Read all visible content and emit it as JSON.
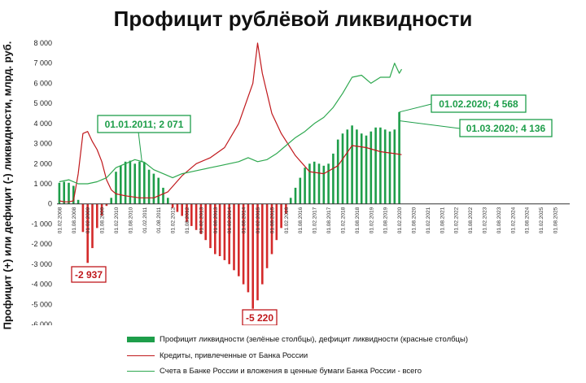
{
  "chart_data": {
    "type": "bar",
    "title": "Профицит рублёвой ликвидности",
    "ylabel": "Профицит (+) или дефицит (-) ликвидности, млрд. руб.",
    "ylim": [
      -6000,
      8000
    ],
    "yticks": [
      "8 000",
      "7 000",
      "6 000",
      "5 000",
      "4 000",
      "3 000",
      "2 000",
      "1 000",
      "0",
      "-1 000",
      "-2 000",
      "-3 000",
      "-4 000",
      "-5 000",
      "-6 000"
    ],
    "ytick_values": [
      8000,
      7000,
      6000,
      5000,
      4000,
      3000,
      2000,
      1000,
      0,
      -1000,
      -2000,
      -3000,
      -4000,
      -5000,
      -6000
    ],
    "grid": false,
    "legend_position": "bottom",
    "x_ticks": [
      "01.02.2008",
      "01.08.2008",
      "01.02.2009",
      "01.08.2009",
      "01.02.2010",
      "01.08.2010",
      "01.02.2011",
      "01.08.2011",
      "01.02.2012",
      "01.08.2012",
      "01.02.2013",
      "01.08.2013",
      "01.02.2014",
      "01.08.2014",
      "01.02.2015",
      "01.08.2015",
      "01.02.2016",
      "01.08.2016",
      "01.02.2017",
      "01.08.2017",
      "01.02.2018",
      "01.08.2018",
      "01.02.2019",
      "01.08.2019",
      "01.02.2020",
      "01.08.2020",
      "01.02.2021",
      "01.08.2021",
      "01.02.2022",
      "01.08.2022",
      "01.02.2023",
      "01.08.2023",
      "01.02.2024",
      "01.08.2024",
      "01.02.2025",
      "01.08.2025"
    ],
    "bar_dates": [
      "01.02.2008",
      "01.04.2008",
      "01.06.2008",
      "01.08.2008",
      "01.10.2008",
      "01.12.2008",
      "01.02.2009",
      "01.04.2009",
      "01.06.2009",
      "01.08.2009",
      "01.10.2009",
      "01.12.2009",
      "01.02.2010",
      "01.04.2010",
      "01.06.2010",
      "01.08.2010",
      "01.10.2010",
      "01.12.2010",
      "01.02.2011",
      "01.04.2011",
      "01.06.2011",
      "01.08.2011",
      "01.10.2011",
      "01.12.2011",
      "01.02.2012",
      "01.04.2012",
      "01.06.2012",
      "01.08.2012",
      "01.10.2012",
      "01.12.2012",
      "01.02.2013",
      "01.04.2013",
      "01.06.2013",
      "01.08.2013",
      "01.10.2013",
      "01.12.2013",
      "01.02.2014",
      "01.04.2014",
      "01.06.2014",
      "01.08.2014",
      "01.10.2014",
      "01.12.2014",
      "01.02.2015",
      "01.04.2015",
      "01.06.2015",
      "01.08.2015",
      "01.10.2015",
      "01.12.2015",
      "01.02.2016",
      "01.04.2016",
      "01.06.2016",
      "01.08.2016",
      "01.10.2016",
      "01.12.2016",
      "01.02.2017",
      "01.04.2017",
      "01.06.2017",
      "01.08.2017",
      "01.10.2017",
      "01.12.2017",
      "01.02.2018",
      "01.04.2018",
      "01.06.2018",
      "01.08.2018",
      "01.10.2018",
      "01.12.2018",
      "01.02.2019",
      "01.04.2019",
      "01.06.2019",
      "01.08.2019",
      "01.10.2019",
      "01.12.2019",
      "01.02.2020"
    ],
    "series": [
      {
        "name": "Профицит ликвидности (зелёные столбцы), дефицит ликвидности (красные столбцы)",
        "type": "bar",
        "positive_color": "#1e9e4a",
        "negative_color": "#d42a2a",
        "values": [
          1050,
          1100,
          1050,
          900,
          200,
          -1400,
          -2937,
          -2200,
          -1200,
          -600,
          -100,
          300,
          1600,
          1900,
          2100,
          2150,
          2000,
          2100,
          2071,
          1700,
          1500,
          1300,
          800,
          300,
          -200,
          -400,
          -600,
          -900,
          -1100,
          -1300,
          -1500,
          -1800,
          -2200,
          -2500,
          -2600,
          -2800,
          -3000,
          -3300,
          -3600,
          -4000,
          -4400,
          -5220,
          -4800,
          -4000,
          -3200,
          -2500,
          -1800,
          -1200,
          -500,
          300,
          800,
          1300,
          1800,
          2000,
          2100,
          2000,
          1900,
          2000,
          2500,
          3200,
          3500,
          3700,
          3900,
          3700,
          3500,
          3400,
          3600,
          3800,
          3800,
          3700,
          3600,
          3700,
          4568
        ]
      },
      {
        "name": "Кредиты, привлеченные от Банка России",
        "type": "line",
        "color": "#c0181c",
        "x": [
          "01.02.2008",
          "01.04.2008",
          "01.06.2008",
          "01.08.2008",
          "01.10.2008",
          "01.12.2008",
          "01.02.2009",
          "01.04.2009",
          "01.06.2009",
          "01.08.2009",
          "01.10.2009",
          "01.12.2009",
          "01.02.2010",
          "01.06.2010",
          "01.12.2010",
          "01.06.2011",
          "01.12.2011",
          "01.06.2012",
          "01.12.2012",
          "01.06.2013",
          "01.12.2013",
          "01.06.2014",
          "01.12.2014",
          "01.02.2015",
          "01.04.2015",
          "01.08.2015",
          "01.12.2015",
          "01.06.2016",
          "01.12.2016",
          "01.06.2017",
          "01.12.2017",
          "01.06.2018",
          "01.12.2018",
          "01.06.2019",
          "01.12.2019",
          "01.03.2020"
        ],
        "values": [
          150,
          100,
          100,
          150,
          1500,
          3500,
          3600,
          3100,
          2700,
          2100,
          1200,
          700,
          500,
          400,
          300,
          300,
          600,
          1400,
          2000,
          2300,
          2800,
          4000,
          6000,
          8000,
          6500,
          4500,
          3500,
          2400,
          1600,
          1500,
          1900,
          2900,
          2800,
          2600,
          2500,
          2450
        ]
      },
      {
        "name": "Счета в Банке России и вложения в ценные бумаги Банка России - всего",
        "type": "line",
        "color": "#2ea84f",
        "x": [
          "01.02.2008",
          "01.06.2008",
          "01.10.2008",
          "01.02.2009",
          "01.06.2009",
          "01.10.2009",
          "01.02.2010",
          "01.06.2010",
          "01.10.2010",
          "01.02.2011",
          "01.06.2011",
          "01.10.2011",
          "01.02.2012",
          "01.06.2012",
          "01.10.2012",
          "01.02.2013",
          "01.06.2013",
          "01.10.2013",
          "01.02.2014",
          "01.06.2014",
          "01.10.2014",
          "01.02.2015",
          "01.06.2015",
          "01.10.2015",
          "01.02.2016",
          "01.06.2016",
          "01.10.2016",
          "01.02.2017",
          "01.06.2017",
          "01.10.2017",
          "01.02.2018",
          "01.06.2018",
          "01.10.2018",
          "01.02.2019",
          "01.06.2019",
          "01.10.2019",
          "01.12.2019",
          "01.02.2020",
          "01.03.2020"
        ],
        "values": [
          1100,
          1200,
          1000,
          1000,
          1100,
          1300,
          1800,
          2000,
          2200,
          2071,
          1700,
          1500,
          1300,
          1500,
          1600,
          1700,
          1800,
          1900,
          2000,
          2100,
          2300,
          2100,
          2200,
          2500,
          2900,
          3300,
          3600,
          4000,
          4300,
          4800,
          5500,
          6300,
          6400,
          6000,
          6300,
          6300,
          7000,
          6500,
          6700
        ]
      }
    ],
    "annotations": [
      {
        "label": "01.01.2011; 2 071",
        "color": "#1e9e4a"
      },
      {
        "label": "01.02.2020; 4 568",
        "color": "#1e9e4a"
      },
      {
        "label": "01.03.2020; 4 136",
        "color": "#1e9e4a"
      },
      {
        "label": "-2 937",
        "color": "#c0181c"
      },
      {
        "label": "-5 220",
        "color": "#c0181c"
      }
    ]
  }
}
